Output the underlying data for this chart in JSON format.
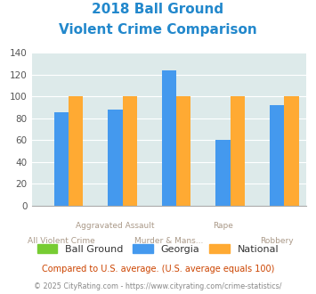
{
  "title_line1": "2018 Ball Ground",
  "title_line2": "Violent Crime Comparison",
  "categories": [
    "All Violent Crime",
    "Aggravated Assault",
    "Murder & Mans...",
    "Rape",
    "Robbery"
  ],
  "series": {
    "Ball Ground": [
      0,
      0,
      0,
      0,
      0
    ],
    "Georgia": [
      86,
      88,
      124,
      60,
      92
    ],
    "National": [
      100,
      100,
      100,
      100,
      100
    ]
  },
  "colors": {
    "Ball Ground": "#77cc33",
    "Georgia": "#4499ee",
    "National": "#ffaa33"
  },
  "ylim": [
    0,
    140
  ],
  "yticks": [
    0,
    20,
    40,
    60,
    80,
    100,
    120,
    140
  ],
  "plot_bg": "#ddeaea",
  "title_color": "#2288cc",
  "footnote1": "Compared to U.S. average. (U.S. average equals 100)",
  "footnote2": "© 2025 CityRating.com - https://www.cityrating.com/crime-statistics/",
  "footnote1_color": "#cc4400",
  "footnote2_color": "#888888",
  "xlabel_color": "#aa9988",
  "title_fontsize": 11,
  "bar_width": 0.27
}
